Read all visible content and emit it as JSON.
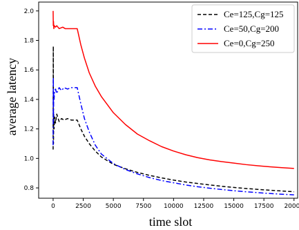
{
  "chart_data": {
    "type": "line",
    "title": "",
    "xlabel": "time slot",
    "ylabel": "average latency",
    "xlim": [
      -1200,
      20300
    ],
    "ylim": [
      0.73,
      2.06
    ],
    "x_ticks": [
      0,
      2500,
      5000,
      7500,
      10000,
      12500,
      15000,
      17500,
      20000
    ],
    "x_tick_labels": [
      "0",
      "2500",
      "5000",
      "7500",
      "10000",
      "12500",
      "15000",
      "17500",
      "20000"
    ],
    "y_ticks": [
      0.8,
      1.0,
      1.2,
      1.4,
      1.6,
      1.8,
      2.0
    ],
    "y_tick_labels": [
      "0.8",
      "1.0",
      "1.2",
      "1.4",
      "1.6",
      "1.8",
      "2.0"
    ],
    "grid": false,
    "legend_position": "top-right",
    "series": [
      {
        "name": "Ce=125,Cg=125",
        "color": "#000000",
        "dash": "dashed",
        "x": [
          0,
          15,
          30,
          50,
          80,
          120,
          200,
          300,
          500,
          700,
          900,
          1200,
          1500,
          1800,
          2000,
          2300,
          2600,
          3000,
          3500,
          4000,
          5000,
          6000,
          7000,
          8000,
          9000,
          10000,
          11000,
          12000,
          13000,
          14000,
          15000,
          16000,
          17000,
          18000,
          19000,
          20000
        ],
        "y": [
          1.06,
          1.76,
          1.1,
          1.3,
          1.2,
          1.28,
          1.24,
          1.3,
          1.25,
          1.27,
          1.26,
          1.27,
          1.26,
          1.26,
          1.26,
          1.2,
          1.15,
          1.1,
          1.05,
          1.01,
          0.96,
          0.93,
          0.905,
          0.885,
          0.868,
          0.853,
          0.84,
          0.83,
          0.82,
          0.811,
          0.803,
          0.796,
          0.79,
          0.784,
          0.779,
          0.774
        ]
      },
      {
        "name": "Ce=50,Cg=200",
        "color": "#0000ff",
        "dash": "dashdot",
        "x": [
          0,
          15,
          30,
          50,
          80,
          120,
          200,
          300,
          500,
          700,
          900,
          1200,
          1500,
          1800,
          2000,
          2300,
          2600,
          3000,
          3500,
          4000,
          5000,
          6000,
          7000,
          8000,
          9000,
          10000,
          11000,
          12000,
          13000,
          14000,
          15000,
          16000,
          17000,
          18000,
          19000,
          20000
        ],
        "y": [
          1.09,
          1.55,
          1.26,
          1.45,
          1.4,
          1.46,
          1.47,
          1.44,
          1.48,
          1.46,
          1.48,
          1.47,
          1.48,
          1.48,
          1.48,
          1.37,
          1.27,
          1.18,
          1.09,
          1.03,
          0.965,
          0.925,
          0.895,
          0.87,
          0.85,
          0.835,
          0.82,
          0.808,
          0.798,
          0.789,
          0.781,
          0.774,
          0.768,
          0.762,
          0.757,
          0.753
        ]
      },
      {
        "name": "Ce=0,Cg=250",
        "color": "#ff0000",
        "dash": "solid",
        "x": [
          0,
          15,
          30,
          60,
          100,
          200,
          300,
          500,
          800,
          1000,
          1300,
          1600,
          1900,
          2000,
          2300,
          2600,
          3000,
          3500,
          4000,
          5000,
          6000,
          7000,
          8000,
          9000,
          10000,
          11000,
          12000,
          13000,
          14000,
          15000,
          16000,
          17000,
          18000,
          19000,
          20000
        ],
        "y": [
          2.0,
          1.9,
          1.93,
          1.88,
          1.9,
          1.89,
          1.9,
          1.88,
          1.89,
          1.88,
          1.88,
          1.88,
          1.88,
          1.88,
          1.77,
          1.68,
          1.58,
          1.49,
          1.42,
          1.31,
          1.23,
          1.165,
          1.12,
          1.08,
          1.05,
          1.025,
          1.005,
          0.99,
          0.978,
          0.968,
          0.958,
          0.95,
          0.943,
          0.937,
          0.932
        ]
      }
    ]
  }
}
